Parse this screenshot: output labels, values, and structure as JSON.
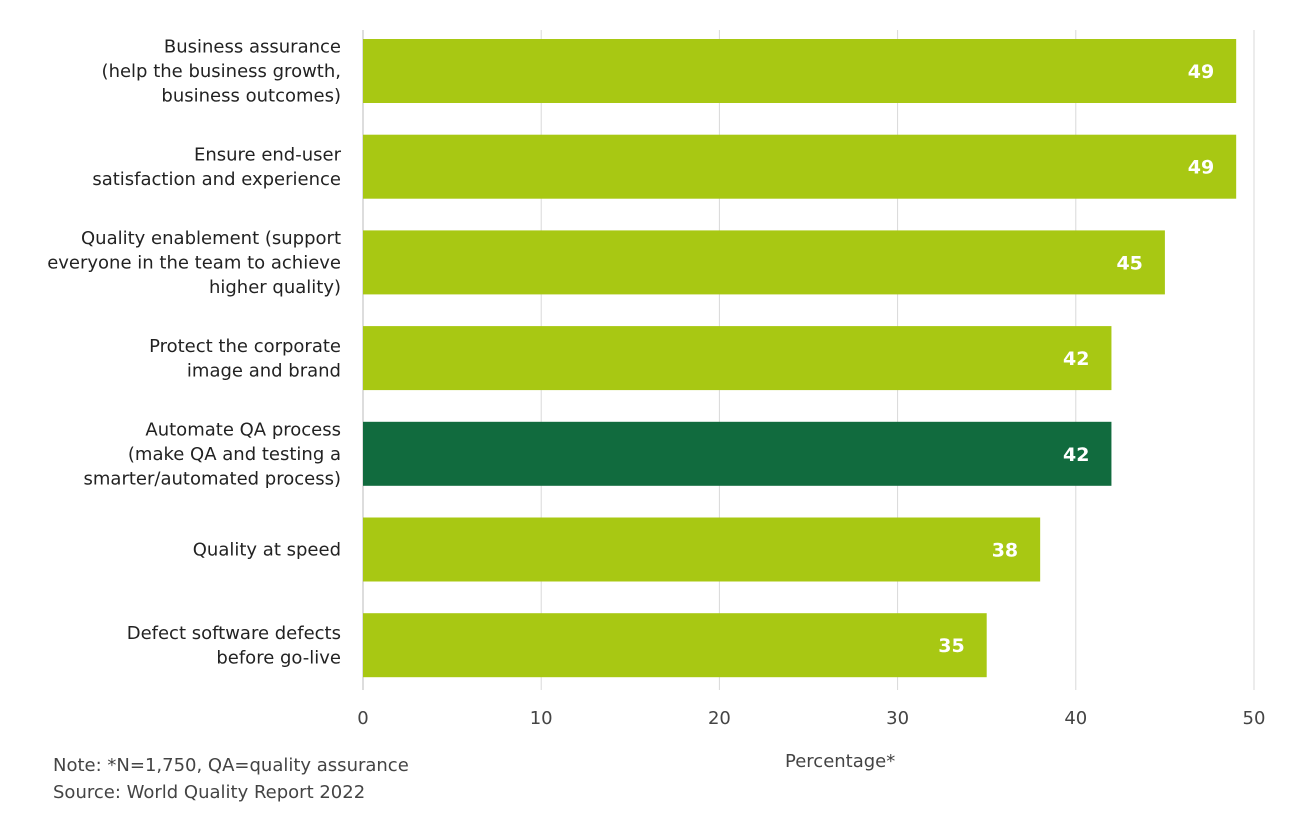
{
  "chart_data": {
    "type": "bar",
    "orientation": "horizontal",
    "categories": [
      [
        "Business assurance",
        "(help the business growth,",
        "business outcomes)"
      ],
      [
        "Ensure end-user",
        "satisfaction and experience"
      ],
      [
        "Quality enablement (support",
        "everyone in the team to achieve",
        "higher quality)"
      ],
      [
        "Protect the corporate",
        "image and brand"
      ],
      [
        "Automate QA process",
        "(make QA and testing a",
        "smarter/automated process)"
      ],
      [
        "Quality at speed"
      ],
      [
        "Defect software defects",
        "before go-live"
      ]
    ],
    "values": [
      49,
      49,
      45,
      42,
      42,
      38,
      35
    ],
    "highlight_index": 4,
    "colors": {
      "default": "#a8c813",
      "highlight": "#116b3e",
      "grid": "#d9d9d9"
    },
    "xlabel": "Percentage*",
    "xlim": [
      0,
      50
    ],
    "xticks": [
      "0",
      "10",
      "20",
      "30",
      "40",
      "50"
    ],
    "grid": true,
    "data_labels": true
  },
  "notes": {
    "note": "Note: *N=1,750, QA=quality assurance",
    "source": "Source: World Quality Report 2022"
  }
}
